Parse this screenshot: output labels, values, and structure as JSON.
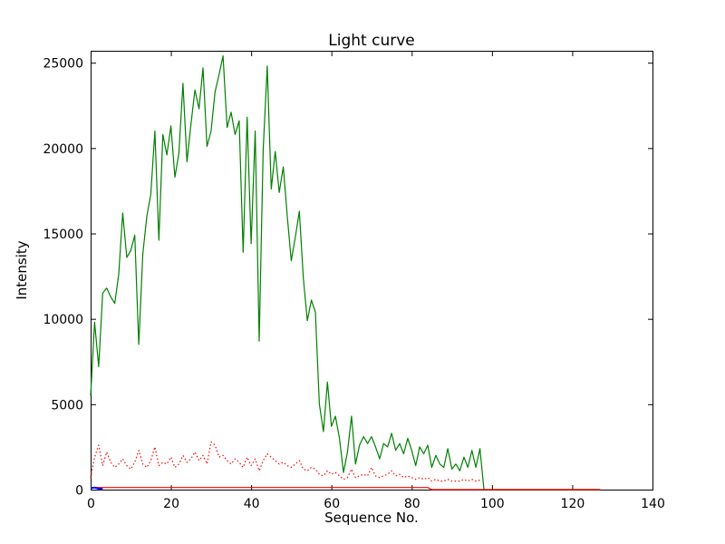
{
  "figure": {
    "background": "#ffffff",
    "frame_color": "#000000"
  },
  "chart_data": {
    "type": "line",
    "title": "Light curve",
    "xlabel": "Sequence No.",
    "ylabel": "Intensity",
    "xlim": [
      0,
      140
    ],
    "ylim": [
      0,
      25700
    ],
    "x_ticks": [
      0,
      20,
      40,
      60,
      80,
      100,
      120,
      140
    ],
    "y_ticks": [
      0,
      5000,
      10000,
      15000,
      20000,
      25000
    ],
    "grid": false,
    "legend": false,
    "series": [
      {
        "name": "intensity-green-solid",
        "color": "#008000",
        "style": "solid",
        "width": 1.2,
        "x": [
          0,
          1,
          2,
          3,
          4,
          5,
          6,
          7,
          8,
          9,
          10,
          11,
          12,
          13,
          14,
          15,
          16,
          17,
          18,
          19,
          20,
          21,
          22,
          23,
          24,
          25,
          26,
          27,
          28,
          29,
          30,
          31,
          32,
          33,
          34,
          35,
          36,
          37,
          38,
          39,
          40,
          41,
          42,
          43,
          44,
          45,
          46,
          47,
          48,
          49,
          50,
          51,
          52,
          53,
          54,
          55,
          56,
          57,
          58,
          59,
          60,
          61,
          62,
          63,
          64,
          65,
          66,
          67,
          68,
          69,
          70,
          71,
          72,
          73,
          74,
          75,
          76,
          77,
          78,
          79,
          80,
          81,
          82,
          83,
          84,
          85,
          86,
          87,
          88,
          89,
          90,
          91,
          92,
          93,
          94,
          95,
          96,
          97,
          98,
          99,
          100,
          101,
          102,
          103,
          104,
          105,
          106,
          107,
          108,
          109,
          110,
          111,
          112,
          113,
          114,
          115,
          116,
          117,
          118,
          119,
          120,
          121,
          122,
          123,
          124,
          125,
          126,
          127
        ],
        "y": [
          5500,
          9800,
          7200,
          11500,
          11800,
          11300,
          10900,
          12600,
          16200,
          13600,
          14000,
          14900,
          8500,
          13800,
          16000,
          17300,
          21000,
          14600,
          20800,
          19600,
          21300,
          18300,
          19700,
          23800,
          19200,
          21400,
          23400,
          22300,
          24700,
          20100,
          21000,
          23300,
          24300,
          25400,
          21200,
          22100,
          20800,
          21600,
          13900,
          21800,
          14400,
          21000,
          8700,
          19900,
          24800,
          17600,
          19800,
          17400,
          18900,
          16000,
          13400,
          14800,
          16300,
          12400,
          9900,
          11100,
          10400,
          5000,
          3400,
          6300,
          3700,
          4300,
          3000,
          1000,
          2200,
          4300,
          1500,
          2600,
          3100,
          2700,
          3100,
          2500,
          1800,
          2700,
          2500,
          3300,
          2300,
          2700,
          2100,
          3000,
          2300,
          1400,
          2500,
          2100,
          2600,
          1300,
          2000,
          1500,
          1300,
          2400,
          1200,
          1500,
          1100,
          1900,
          1300,
          2300,
          1300,
          2400,
          0,
          0,
          0,
          0,
          0,
          0,
          0,
          0,
          0,
          0,
          0,
          0,
          0,
          0,
          0,
          0,
          0,
          0,
          0,
          0,
          0,
          0,
          0,
          0,
          0,
          0,
          0,
          0,
          0,
          0
        ]
      },
      {
        "name": "background-red-dotted",
        "color": "#ff0000",
        "style": "dotted",
        "width": 1.2,
        "x": [
          0,
          1,
          2,
          3,
          4,
          5,
          6,
          7,
          8,
          9,
          10,
          11,
          12,
          13,
          14,
          15,
          16,
          17,
          18,
          19,
          20,
          21,
          22,
          23,
          24,
          25,
          26,
          27,
          28,
          29,
          30,
          31,
          32,
          33,
          34,
          35,
          36,
          37,
          38,
          39,
          40,
          41,
          42,
          43,
          44,
          45,
          46,
          47,
          48,
          49,
          50,
          51,
          52,
          53,
          54,
          55,
          56,
          57,
          58,
          59,
          60,
          61,
          62,
          63,
          64,
          65,
          66,
          67,
          68,
          69,
          70,
          71,
          72,
          73,
          74,
          75,
          76,
          77,
          78,
          79,
          80,
          81,
          82,
          83,
          84,
          85,
          86,
          87,
          88,
          89,
          90,
          91,
          92,
          93,
          94,
          95,
          96,
          97
        ],
        "y": [
          700,
          1900,
          2600,
          1400,
          2200,
          1600,
          1300,
          1500,
          1800,
          1400,
          1200,
          1600,
          2300,
          1500,
          1300,
          1700,
          2500,
          1400,
          1600,
          1500,
          1900,
          1300,
          1500,
          2000,
          1600,
          1800,
          2200,
          1700,
          2000,
          1500,
          2800,
          2600,
          1900,
          2000,
          1700,
          1500,
          1800,
          1600,
          1300,
          1900,
          1400,
          1800,
          1100,
          1700,
          2100,
          1900,
          1700,
          1500,
          1600,
          1400,
          1300,
          1500,
          1700,
          1200,
          1100,
          1300,
          1200,
          900,
          800,
          1100,
          900,
          1000,
          800,
          600,
          700,
          1200,
          700,
          800,
          900,
          800,
          1300,
          800,
          700,
          800,
          900,
          1100,
          800,
          900,
          700,
          800,
          700,
          600,
          700,
          600,
          700,
          500,
          600,
          500,
          500,
          600,
          500,
          500,
          500,
          600,
          500,
          600,
          500,
          550
        ]
      },
      {
        "name": "baseline-red-solid",
        "color": "#ff0000",
        "style": "solid",
        "width": 1.2,
        "x": [
          0,
          84,
          85,
          127
        ],
        "y": [
          120,
          120,
          0,
          0
        ]
      },
      {
        "name": "start-blue-solid",
        "color": "#0000ff",
        "style": "solid",
        "width": 2,
        "x": [
          0,
          1,
          2,
          3
        ],
        "y": [
          80,
          120,
          60,
          40
        ]
      }
    ]
  }
}
